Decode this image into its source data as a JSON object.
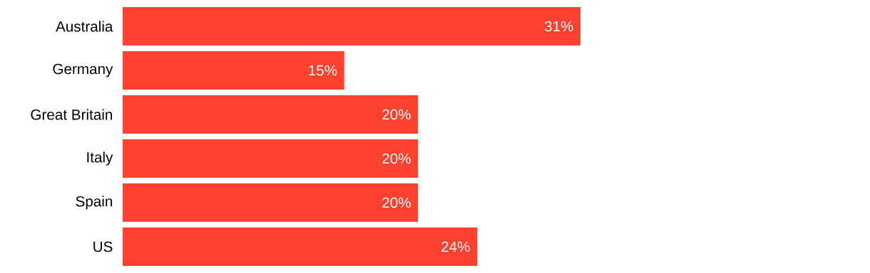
{
  "chart_data": {
    "type": "bar",
    "orientation": "horizontal",
    "categories": [
      "Australia",
      "Germany",
      "Great Britain",
      "Italy",
      "Spain",
      "US"
    ],
    "values": [
      31,
      15,
      20,
      20,
      20,
      24
    ],
    "value_labels": [
      "31%",
      "15%",
      "20%",
      "20%",
      "20%",
      "24%"
    ],
    "color": "#ff4130"
  }
}
